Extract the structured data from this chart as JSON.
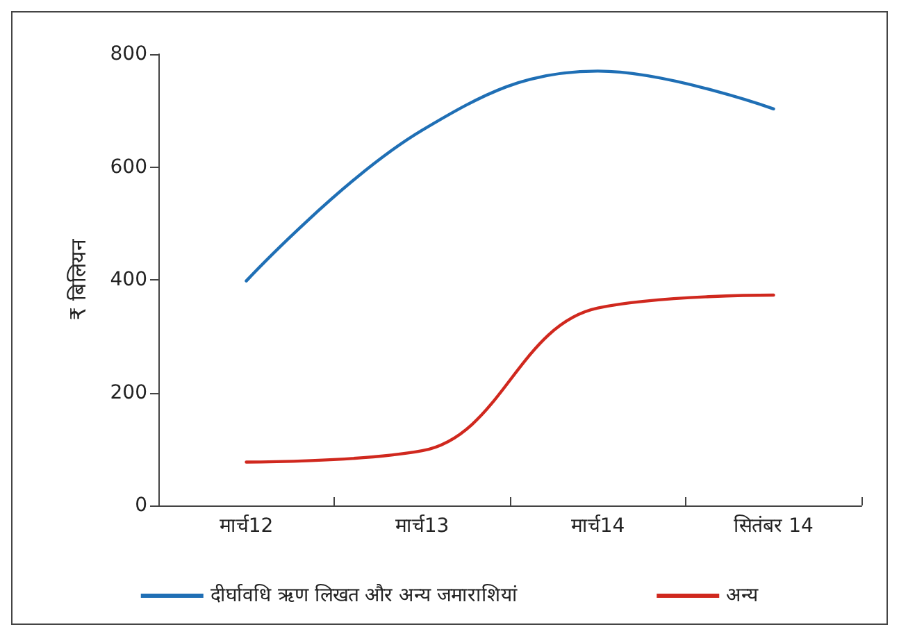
{
  "chart_data": {
    "type": "line",
    "ylabel": "₹ बिलियन",
    "categories": [
      "मार्च12",
      "मार्च13",
      "मार्च14",
      "सितंबर 14"
    ],
    "series": [
      {
        "name": "दीर्घावधि ऋण लिखत और अन्य जमाराशियां",
        "color": "#1f6fb5",
        "values": [
          398,
          665,
          770,
          703
        ]
      },
      {
        "name": "अन्य",
        "color": "#d0281e",
        "values": [
          77,
          97,
          350,
          373
        ]
      }
    ],
    "ylim": [
      0,
      800
    ],
    "yticks": [
      0,
      200,
      400,
      600,
      800
    ],
    "grid": false,
    "legend": "bottom",
    "marker": "none",
    "line_style": "solid"
  }
}
